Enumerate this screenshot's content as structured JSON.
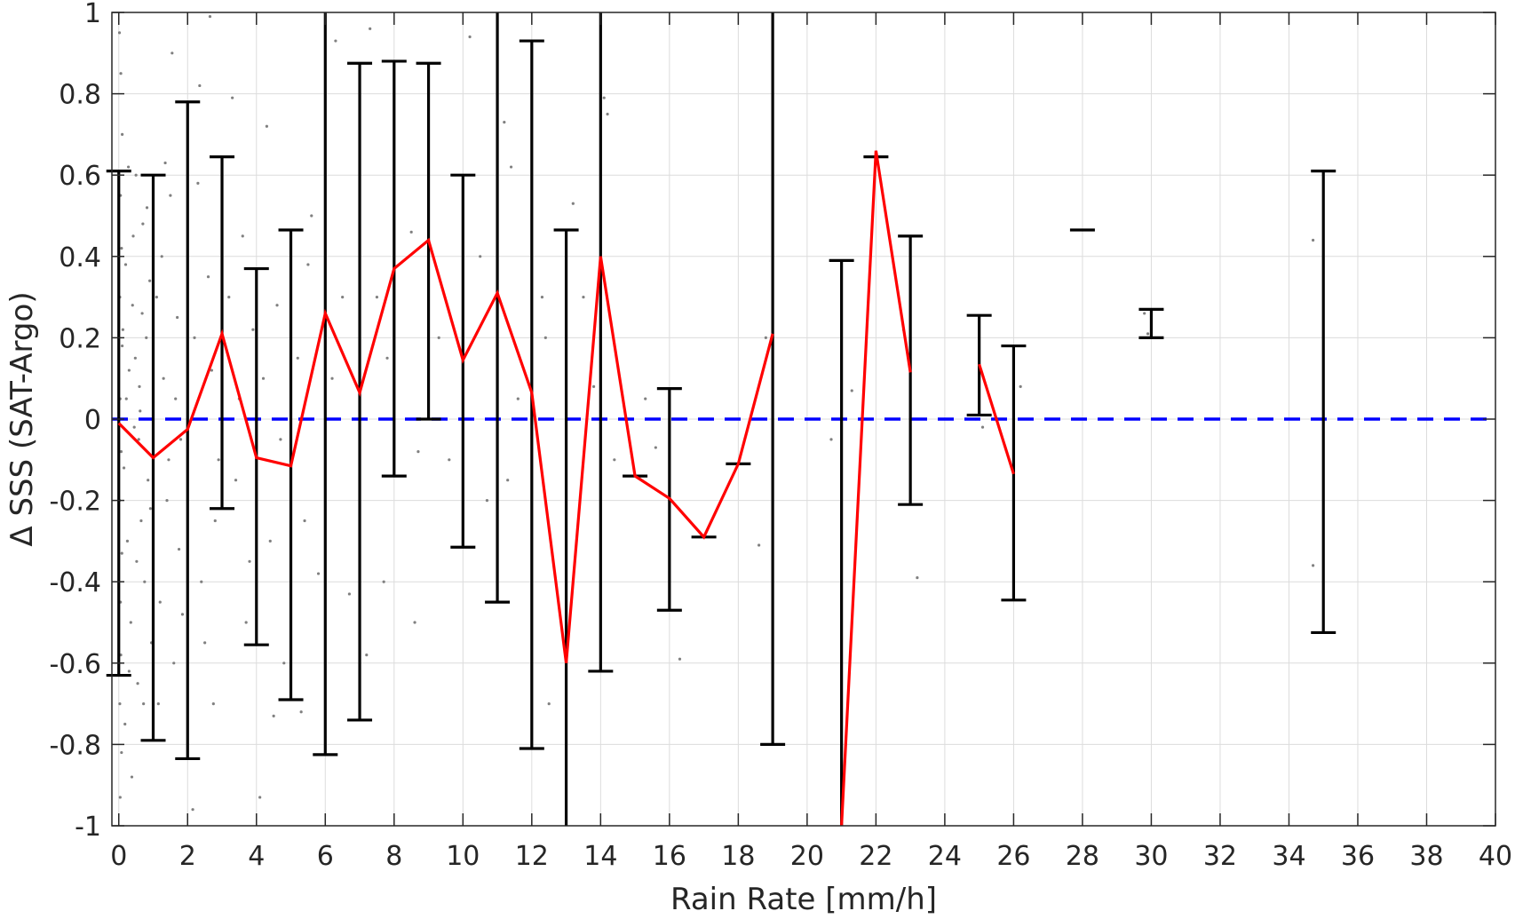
{
  "chart_data": {
    "type": "line",
    "xlabel": "Rain Rate [mm/h]",
    "ylabel": "Δ SSS (SAT-Argo)",
    "xlim": [
      -0.2,
      40
    ],
    "ylim": [
      -1,
      1
    ],
    "xticks": [
      "0",
      "2",
      "4",
      "6",
      "8",
      "10",
      "12",
      "14",
      "16",
      "18",
      "20",
      "22",
      "24",
      "26",
      "28",
      "30",
      "32",
      "34",
      "36",
      "38",
      "40"
    ],
    "yticks": [
      "-1",
      "-0.8",
      "-0.6",
      "-0.4",
      "-0.2",
      "0",
      "0.2",
      "0.4",
      "0.6",
      "0.8",
      "1"
    ],
    "grid": true,
    "zero_reference": {
      "y": 0,
      "style": "dashed",
      "color": "#0000ff"
    },
    "colors": {
      "mean_line": "#ff0000",
      "error_bars": "#000000",
      "scatter": "#808080",
      "zero_line": "#0000ff"
    },
    "mean_series": [
      {
        "segment": [
          {
            "x": 0,
            "y": -0.01
          },
          {
            "x": 1,
            "y": -0.095
          },
          {
            "x": 2,
            "y": -0.025
          },
          {
            "x": 3,
            "y": 0.21
          },
          {
            "x": 4,
            "y": -0.095
          },
          {
            "x": 5,
            "y": -0.115
          },
          {
            "x": 6,
            "y": 0.26
          },
          {
            "x": 7,
            "y": 0.065
          },
          {
            "x": 8,
            "y": 0.37
          },
          {
            "x": 9,
            "y": 0.44
          },
          {
            "x": 10,
            "y": 0.145
          },
          {
            "x": 11,
            "y": 0.31
          },
          {
            "x": 12,
            "y": 0.065
          },
          {
            "x": 13,
            "y": -0.6
          },
          {
            "x": 14,
            "y": 0.4
          },
          {
            "x": 15,
            "y": -0.14
          },
          {
            "x": 16,
            "y": -0.195
          },
          {
            "x": 17,
            "y": -0.29
          },
          {
            "x": 18,
            "y": -0.11
          },
          {
            "x": 19,
            "y": 0.21
          }
        ]
      },
      {
        "segment": [
          {
            "x": 21,
            "y": -1.02
          },
          {
            "x": 22,
            "y": 0.66
          },
          {
            "x": 23,
            "y": 0.115
          }
        ]
      },
      {
        "segment": [
          {
            "x": 25,
            "y": 0.135
          },
          {
            "x": 26,
            "y": -0.135
          }
        ]
      }
    ],
    "error_bars": [
      {
        "x": 0,
        "low": -0.63,
        "high": 0.61
      },
      {
        "x": 1,
        "low": -0.79,
        "high": 0.6
      },
      {
        "x": 2,
        "low": -0.835,
        "high": 0.78
      },
      {
        "x": 3,
        "low": -0.22,
        "high": 0.645
      },
      {
        "x": 4,
        "low": -0.555,
        "high": 0.37
      },
      {
        "x": 5,
        "low": -0.69,
        "high": 0.465
      },
      {
        "x": 6,
        "low": -0.825,
        "high": 1.0
      },
      {
        "x": 7,
        "low": -0.74,
        "high": 0.875
      },
      {
        "x": 8,
        "low": -0.14,
        "high": 0.88
      },
      {
        "x": 9,
        "low": 0.0,
        "high": 0.875
      },
      {
        "x": 10,
        "low": -0.315,
        "high": 0.6
      },
      {
        "x": 11,
        "low": -0.45,
        "high": 1.0
      },
      {
        "x": 12,
        "low": -0.81,
        "high": 0.93
      },
      {
        "x": 13,
        "low": -1.0,
        "high": 0.465
      },
      {
        "x": 14,
        "low": -0.62,
        "high": 1.0
      },
      {
        "x": 15,
        "low": -0.14,
        "high": -0.14
      },
      {
        "x": 16,
        "low": -0.47,
        "high": 0.075
      },
      {
        "x": 17,
        "low": -0.29,
        "high": -0.29
      },
      {
        "x": 18,
        "low": -0.11,
        "high": -0.11
      },
      {
        "x": 19,
        "low": -0.8,
        "high": 1.0
      },
      {
        "x": 21,
        "low": -1.0,
        "high": 0.39
      },
      {
        "x": 22,
        "low": 0.645,
        "high": 0.645
      },
      {
        "x": 23,
        "low": -0.21,
        "high": 0.45
      },
      {
        "x": 25,
        "low": 0.01,
        "high": 0.255
      },
      {
        "x": 26,
        "low": -0.445,
        "high": 0.18
      },
      {
        "x": 28,
        "low": 0.465,
        "high": 0.465
      },
      {
        "x": 30,
        "low": 0.2,
        "high": 0.27
      },
      {
        "x": 35,
        "low": -0.525,
        "high": 0.61
      }
    ],
    "scatter_points": [
      [
        0.05,
        0.55
      ],
      [
        0.08,
        0.42
      ],
      [
        0.03,
        0.3
      ],
      [
        0.1,
        0.18
      ],
      [
        0.04,
        0.05
      ],
      [
        0.07,
        -0.08
      ],
      [
        0.02,
        -0.2
      ],
      [
        0.09,
        -0.33
      ],
      [
        0.05,
        -0.45
      ],
      [
        0.06,
        -0.58
      ],
      [
        0.03,
        -0.7
      ],
      [
        0.08,
        -0.82
      ],
      [
        0.04,
        -0.93
      ],
      [
        0.1,
        0.7
      ],
      [
        0.06,
        0.85
      ],
      [
        0.02,
        0.95
      ],
      [
        0.12,
        0.22
      ],
      [
        0.15,
        -0.12
      ],
      [
        0.2,
        0.38
      ],
      [
        0.25,
        -0.3
      ],
      [
        0.3,
        0.12
      ],
      [
        0.35,
        -0.5
      ],
      [
        0.4,
        0.28
      ],
      [
        0.45,
        -0.02
      ],
      [
        0.5,
        0.6
      ],
      [
        0.55,
        -0.65
      ],
      [
        0.6,
        0.08
      ],
      [
        0.65,
        -0.25
      ],
      [
        0.7,
        0.48
      ],
      [
        0.75,
        -0.4
      ],
      [
        0.8,
        0.2
      ],
      [
        0.85,
        -0.15
      ],
      [
        0.9,
        0.34
      ],
      [
        0.95,
        -0.55
      ],
      [
        0.18,
        -0.75
      ],
      [
        0.28,
        0.62
      ],
      [
        0.38,
        -0.88
      ],
      [
        0.48,
        0.15
      ],
      [
        0.58,
        -0.05
      ],
      [
        0.68,
        0.26
      ],
      [
        0.3,
        -0.62
      ],
      [
        0.42,
        0.45
      ],
      [
        0.52,
        -0.35
      ],
      [
        0.62,
        0.02
      ],
      [
        0.72,
        -0.7
      ],
      [
        0.82,
        0.52
      ],
      [
        0.92,
        -0.22
      ],
      [
        0.22,
        0.05
      ],
      [
        1.1,
        0.3
      ],
      [
        1.2,
        -0.45
      ],
      [
        1.3,
        0.1
      ],
      [
        1.4,
        -0.2
      ],
      [
        1.5,
        0.55
      ],
      [
        1.6,
        -0.6
      ],
      [
        1.7,
        0.25
      ],
      [
        1.8,
        -0.05
      ],
      [
        1.15,
        -0.7
      ],
      [
        1.35,
        0.63
      ],
      [
        1.55,
        0.9
      ],
      [
        1.75,
        -0.32
      ],
      [
        1.25,
        0.4
      ],
      [
        1.45,
        -0.1
      ],
      [
        1.65,
        0.05
      ],
      [
        1.85,
        -0.48
      ],
      [
        2.2,
        0.2
      ],
      [
        2.4,
        -0.4
      ],
      [
        2.6,
        0.35
      ],
      [
        2.8,
        -0.25
      ],
      [
        2.3,
        0.58
      ],
      [
        2.5,
        -0.55
      ],
      [
        2.7,
        0.12
      ],
      [
        2.9,
        -0.1
      ],
      [
        2.15,
        -0.96
      ],
      [
        2.35,
        0.82
      ],
      [
        2.55,
        0.0
      ],
      [
        2.75,
        -0.7
      ],
      [
        3.2,
        0.3
      ],
      [
        3.4,
        -0.15
      ],
      [
        3.6,
        0.45
      ],
      [
        3.8,
        -0.35
      ],
      [
        3.3,
        0.79
      ],
      [
        3.5,
        0.05
      ],
      [
        3.7,
        -0.5
      ],
      [
        3.9,
        0.22
      ],
      [
        2.65,
        0.99
      ],
      [
        4.2,
        0.1
      ],
      [
        4.4,
        -0.3
      ],
      [
        4.6,
        0.28
      ],
      [
        4.8,
        -0.6
      ],
      [
        4.3,
        0.72
      ],
      [
        4.5,
        -0.73
      ],
      [
        4.7,
        -0.05
      ],
      [
        4.1,
        -0.93
      ],
      [
        5.2,
        0.15
      ],
      [
        5.4,
        -0.25
      ],
      [
        5.6,
        0.5
      ],
      [
        5.8,
        -0.38
      ],
      [
        5.3,
        -0.72
      ],
      [
        5.5,
        0.38
      ],
      [
        6.3,
        0.93
      ],
      [
        6.5,
        0.3
      ],
      [
        6.7,
        -0.43
      ],
      [
        6.2,
        0.1
      ],
      [
        7.3,
        0.96
      ],
      [
        7.5,
        0.3
      ],
      [
        7.7,
        -0.4
      ],
      [
        7.2,
        -0.58
      ],
      [
        7.8,
        0.15
      ],
      [
        8.5,
        0.46
      ],
      [
        8.7,
        -0.08
      ],
      [
        8.6,
        -0.5
      ],
      [
        9.3,
        0.2
      ],
      [
        9.6,
        -0.1
      ],
      [
        10.2,
        0.94
      ],
      [
        10.5,
        0.4
      ],
      [
        10.7,
        -0.2
      ],
      [
        11.2,
        0.73
      ],
      [
        11.4,
        0.62
      ],
      [
        11.6,
        0.05
      ],
      [
        11.3,
        -0.15
      ],
      [
        12.3,
        0.3
      ],
      [
        12.5,
        -0.7
      ],
      [
        12.4,
        0.2
      ],
      [
        13.2,
        0.53
      ],
      [
        13.5,
        0.3
      ],
      [
        13.8,
        0.08
      ],
      [
        14.1,
        0.79
      ],
      [
        14.2,
        0.75
      ],
      [
        14.4,
        -0.1
      ],
      [
        15.3,
        0.05
      ],
      [
        15.6,
        -0.07
      ],
      [
        16.3,
        -0.59
      ],
      [
        18.6,
        -0.31
      ],
      [
        18.8,
        0.2
      ],
      [
        20.7,
        -0.05
      ],
      [
        21.3,
        0.07
      ],
      [
        22.8,
        0.22
      ],
      [
        23.2,
        -0.39
      ],
      [
        24.9,
        0.0
      ],
      [
        25.1,
        -0.02
      ],
      [
        26.2,
        0.08
      ],
      [
        29.8,
        0.26
      ],
      [
        29.9,
        0.21
      ],
      [
        34.7,
        0.44
      ],
      [
        34.7,
        -0.36
      ]
    ]
  }
}
